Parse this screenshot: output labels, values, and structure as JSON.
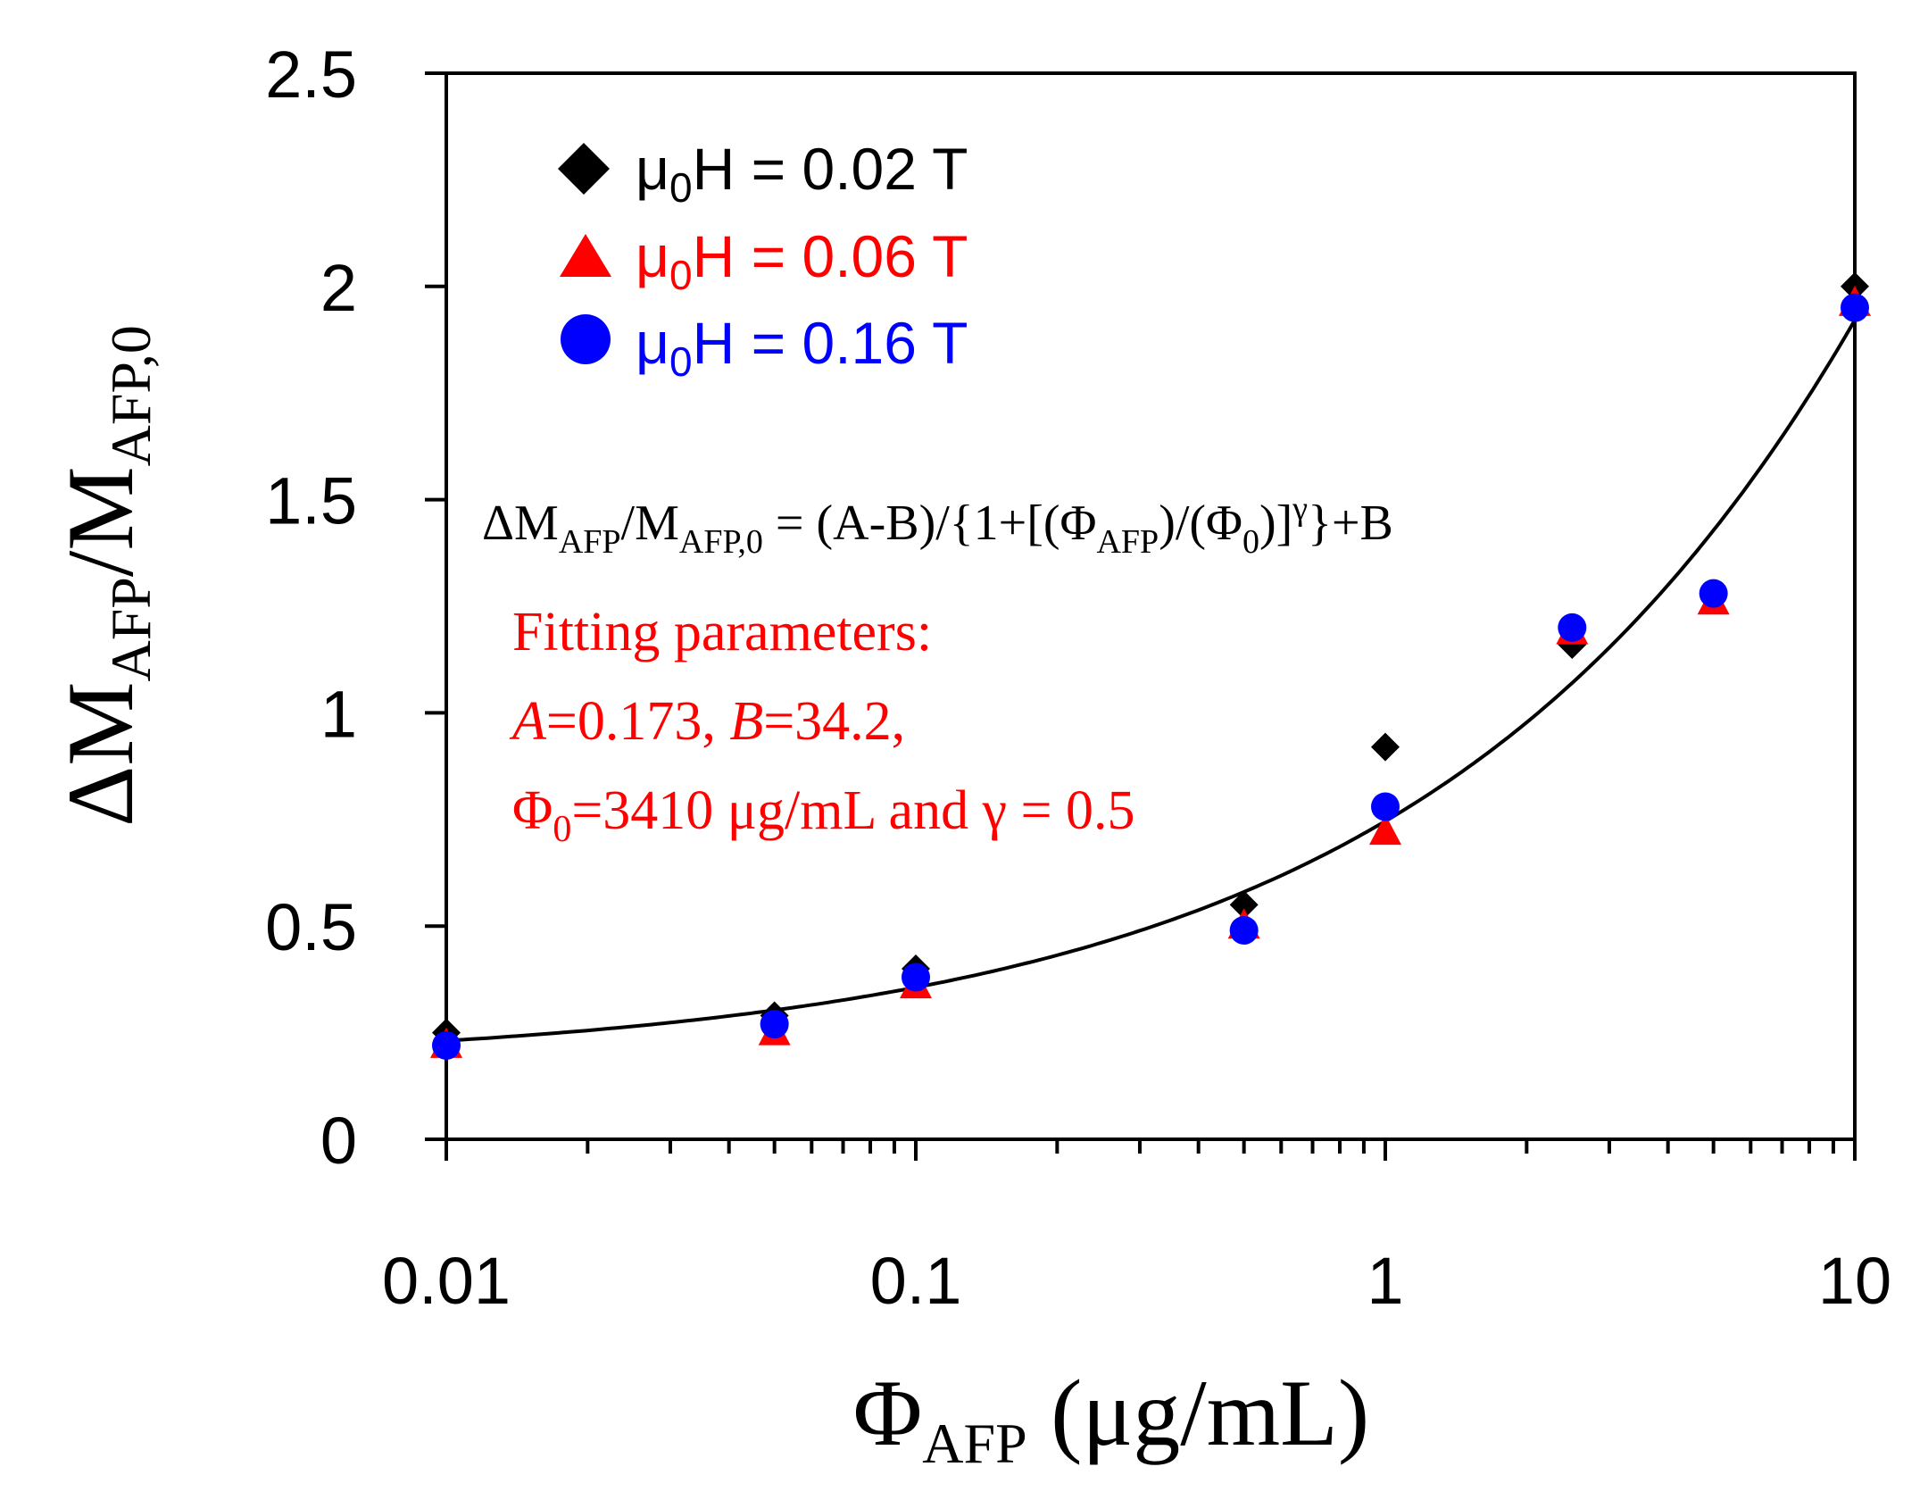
{
  "chart_data": {
    "type": "scatter",
    "x_scale": "log",
    "xlim": [
      0.01,
      10
    ],
    "ylim": [
      0,
      2.5
    ],
    "y_ticks": [
      "0",
      "0.5",
      "1",
      "1.5",
      "2",
      "2.5"
    ],
    "x_ticks": [
      "0.01",
      "0.1",
      "1",
      "10"
    ],
    "xlabel": {
      "symbol": "Φ",
      "sub": "AFP",
      "unit": " (μg/mL)"
    },
    "ylabel": {
      "lead": "ΔM",
      "sub1": "AFP",
      "mid": "/M",
      "sub2": "AFP,0"
    },
    "series": [
      {
        "name": "μ0H = 0.02 T",
        "label_prefix": "μ",
        "label_sub": "0",
        "label_rest": "H = 0.02 T",
        "marker": "diamond",
        "color": "#000000",
        "x": [
          0.01,
          0.05,
          0.1,
          0.5,
          1,
          2.5,
          10
        ],
        "y": [
          0.25,
          0.29,
          0.4,
          0.55,
          0.92,
          1.16,
          2.0
        ]
      },
      {
        "name": "μ0H = 0.06 T",
        "label_prefix": "μ",
        "label_sub": "0",
        "label_rest": "H = 0.06 T",
        "marker": "triangle",
        "color": "#ff0000",
        "x": [
          0.01,
          0.05,
          0.1,
          0.5,
          1,
          2.5,
          5,
          10
        ],
        "y": [
          0.22,
          0.25,
          0.36,
          0.5,
          0.72,
          1.19,
          1.26,
          1.96
        ]
      },
      {
        "name": "μ0H = 0.16 T",
        "label_prefix": "μ",
        "label_sub": "0",
        "label_rest": "H = 0.16 T",
        "marker": "circle",
        "color": "#0000ff",
        "x": [
          0.01,
          0.05,
          0.1,
          0.5,
          1,
          2.5,
          5,
          10
        ],
        "y": [
          0.22,
          0.27,
          0.38,
          0.49,
          0.78,
          1.2,
          1.28,
          1.95
        ]
      }
    ],
    "fit": {
      "A": 0.173,
      "B": 34.2,
      "phi0": 3410,
      "gamma": 0.5,
      "color": "#000000"
    },
    "annotations": {
      "formula": {
        "t1": "ΔM",
        "s1": "AFP",
        "t2": "/M",
        "s2": "AFP,0",
        "t3": " = (A-B)/{1+[(Φ",
        "s3": "AFP",
        "t4": ")/(Φ",
        "s4": "0",
        "t5": ")]",
        "sup": "γ",
        "t6": "}+B"
      },
      "fit_heading": "Fitting parameters:",
      "fit_line2": {
        "a_sym": "A",
        "a_val": "=0.173, ",
        "b_sym": "B",
        "b_val": "=34.2,"
      },
      "fit_line3": {
        "phi": "Φ",
        "sub": "0",
        "rest": "=3410 μg/mL and γ = 0.5"
      }
    }
  }
}
